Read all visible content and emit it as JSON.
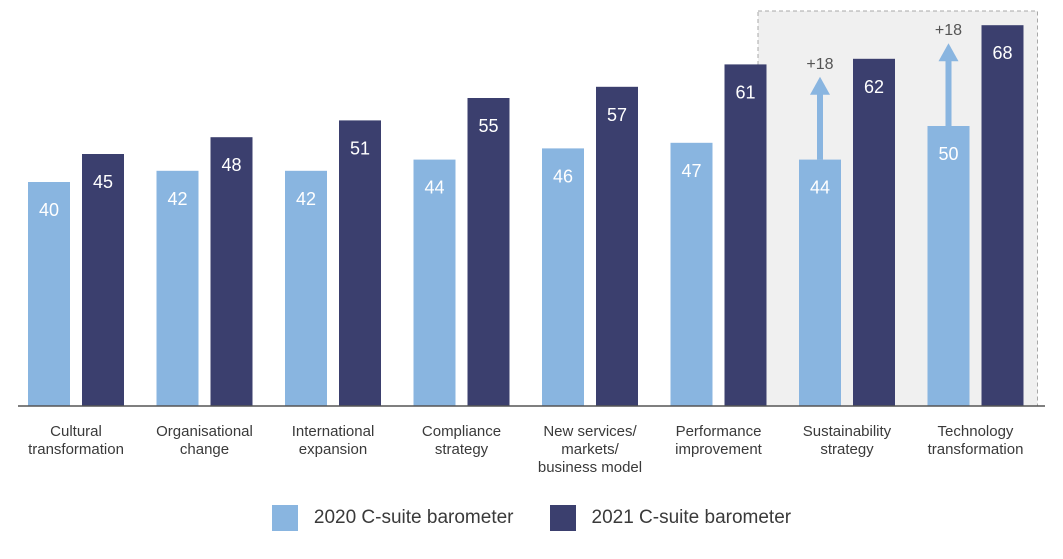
{
  "chart_data": {
    "type": "bar",
    "categories": [
      [
        "Cultural",
        "transformation"
      ],
      [
        "Organisational",
        "change"
      ],
      [
        "International",
        "expansion"
      ],
      [
        "Compliance",
        "strategy"
      ],
      [
        "New services/",
        "markets/",
        "business model"
      ],
      [
        "Performance",
        "improvement"
      ],
      [
        "Sustainability",
        "strategy"
      ],
      [
        "Technology",
        "transformation"
      ]
    ],
    "series": [
      {
        "name": "2020 C-suite barometer",
        "color": "#89b5e0",
        "values": [
          40,
          42,
          42,
          44,
          46,
          47,
          44,
          50
        ]
      },
      {
        "name": "2021 C-suite barometer",
        "color": "#3b3f6e",
        "values": [
          45,
          48,
          51,
          55,
          57,
          61,
          62,
          68
        ]
      }
    ],
    "annotations": [
      {
        "category_index": 6,
        "text": "+18"
      },
      {
        "category_index": 7,
        "text": "+18"
      }
    ],
    "highlight_categories": [
      6,
      7
    ],
    "ylim": [
      0,
      70
    ],
    "grid": false,
    "legend_position": "bottom"
  }
}
